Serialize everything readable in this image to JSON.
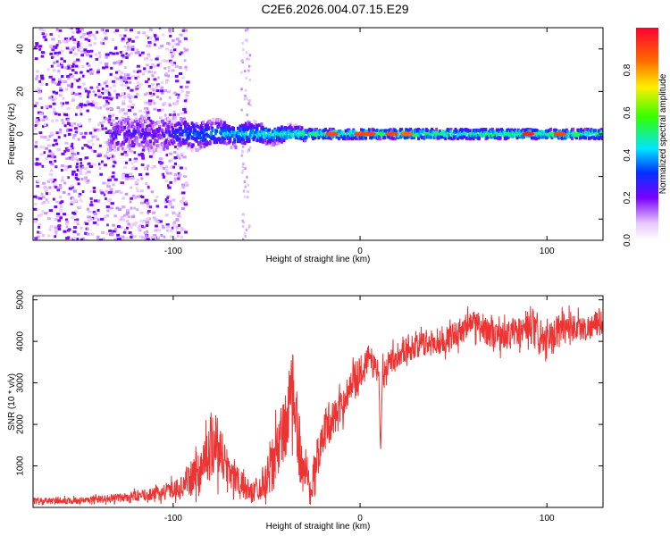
{
  "title": "C2E6.2026.004.07.15.E29",
  "colors": {
    "signal": "#ee3333",
    "frame": "#000000"
  },
  "chart_data": [
    {
      "type": "heatmap",
      "title": "",
      "xlabel": "Height of straight line (km)",
      "ylabel": "Frequency (Hz)",
      "xlim": [
        -175,
        130
      ],
      "ylim": [
        -50,
        50
      ],
      "xticks": [
        -100,
        0,
        100
      ],
      "xtick_labels": [
        "-100",
        "0",
        "100"
      ],
      "yticks": [
        -40,
        -20,
        0,
        20,
        40
      ],
      "ytick_labels": [
        "-40",
        "-20",
        "0",
        "20",
        "40"
      ],
      "grid": false,
      "description_bands": [
        {
          "x_range": [
            -175,
            -100
          ],
          "freq_spread": 50,
          "amplitude": 0.08
        },
        {
          "x_range": [
            -130,
            -30
          ],
          "freq_spread": 8,
          "amplitude": 0.3
        },
        {
          "x_range": [
            -30,
            130
          ],
          "freq_spread": 2,
          "amplitude": 0.55
        }
      ],
      "hot_spots": [
        {
          "x": -15,
          "amplitude": 0.9
        },
        {
          "x": 0,
          "amplitude": 0.9
        },
        {
          "x": 5,
          "amplitude": 0.9
        },
        {
          "x": 17,
          "amplitude": 0.9
        },
        {
          "x": 25,
          "amplitude": 0.85
        },
        {
          "x": 90,
          "amplitude": 0.95
        },
        {
          "x": 107,
          "amplitude": 0.9
        }
      ],
      "colorbar": {
        "label": "Normalized spectral amplitude",
        "range": [
          0,
          1
        ],
        "ticks": [
          0,
          0.2,
          0.4,
          0.6,
          0.8
        ],
        "tick_labels": [
          "0.0",
          "0.2",
          "0.4",
          "0.6",
          "0.8"
        ]
      }
    },
    {
      "type": "line",
      "title": "",
      "xlabel": "Height of straight line (km)",
      "ylabel": "SNR (10 * v/v)",
      "xlim": [
        -175,
        130
      ],
      "ylim": [
        0,
        5100
      ],
      "xticks": [
        -100,
        0,
        100
      ],
      "xtick_labels": [
        "-100",
        "0",
        "100"
      ],
      "yticks": [
        1000,
        2000,
        3000,
        4000,
        5000
      ],
      "ytick_labels": [
        "1000",
        "2000",
        "3000",
        "4000",
        "5000"
      ],
      "grid": false,
      "series": [
        {
          "name": "SNR",
          "x": [
            -175,
            -150,
            -130,
            -110,
            -95,
            -85,
            -78,
            -72,
            -65,
            -58,
            -50,
            -45,
            -40,
            -36,
            -32,
            -26,
            -20,
            -10,
            -5,
            0,
            5,
            10,
            11,
            12,
            20,
            30,
            45,
            60,
            75,
            90,
            100,
            110,
            120,
            130
          ],
          "y": [
            150,
            160,
            230,
            320,
            500,
            950,
            1700,
            1050,
            600,
            350,
            700,
            1300,
            2000,
            2700,
            1200,
            500,
            1800,
            2400,
            3000,
            3300,
            3600,
            3200,
            1300,
            3300,
            3700,
            3900,
            4000,
            4450,
            4100,
            4300,
            3950,
            4400,
            4300,
            4450
          ],
          "noise": [
            80,
            80,
            100,
            150,
            250,
            600,
            900,
            500,
            350,
            250,
            450,
            700,
            900,
            1000,
            600,
            400,
            500,
            400,
            400,
            350,
            350,
            300,
            0,
            300,
            300,
            300,
            300,
            350,
            350,
            400,
            400,
            400,
            300,
            300
          ]
        }
      ]
    }
  ]
}
